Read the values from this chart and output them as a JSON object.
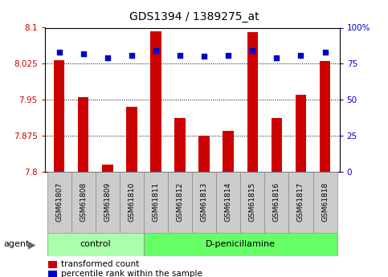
{
  "title": "GDS1394 / 1389275_at",
  "samples": [
    "GSM61807",
    "GSM61808",
    "GSM61809",
    "GSM61810",
    "GSM61811",
    "GSM61812",
    "GSM61813",
    "GSM61814",
    "GSM61815",
    "GSM61816",
    "GSM61817",
    "GSM61818"
  ],
  "bar_values": [
    8.032,
    7.955,
    7.815,
    7.935,
    8.092,
    7.912,
    7.875,
    7.885,
    8.09,
    7.912,
    7.96,
    8.03
  ],
  "percentile_values": [
    83,
    82,
    79,
    81,
    84,
    81,
    80,
    81,
    84,
    79,
    81,
    83
  ],
  "ylim_left": [
    7.8,
    8.1
  ],
  "ylim_right": [
    0,
    100
  ],
  "yticks_left": [
    7.8,
    7.875,
    7.95,
    8.025,
    8.1
  ],
  "yticks_right": [
    0,
    25,
    50,
    75,
    100
  ],
  "ytick_labels_left": [
    "7.8",
    "7.875",
    "7.95",
    "8.025",
    "8.1"
  ],
  "ytick_labels_right": [
    "0",
    "25",
    "50",
    "75",
    "100%"
  ],
  "grid_lines": [
    7.875,
    7.95,
    8.025
  ],
  "bar_color": "#cc0000",
  "dot_color": "#0000cc",
  "n_control": 4,
  "control_label": "control",
  "treatment_label": "D-penicillamine",
  "agent_label": "agent",
  "legend_bar_label": "transformed count",
  "legend_dot_label": "percentile rank within the sample",
  "control_bg": "#aaffaa",
  "treatment_bg": "#66ff66",
  "sample_bg": "#cccccc",
  "bar_bottom": 7.8,
  "dot_size": 25,
  "title_fontsize": 10,
  "tick_fontsize": 7.5,
  "sample_fontsize": 6.5,
  "group_fontsize": 8,
  "legend_fontsize": 7.5,
  "left_tick_color": "#cc0000",
  "right_tick_color": "#0000cc",
  "bar_width": 0.45
}
